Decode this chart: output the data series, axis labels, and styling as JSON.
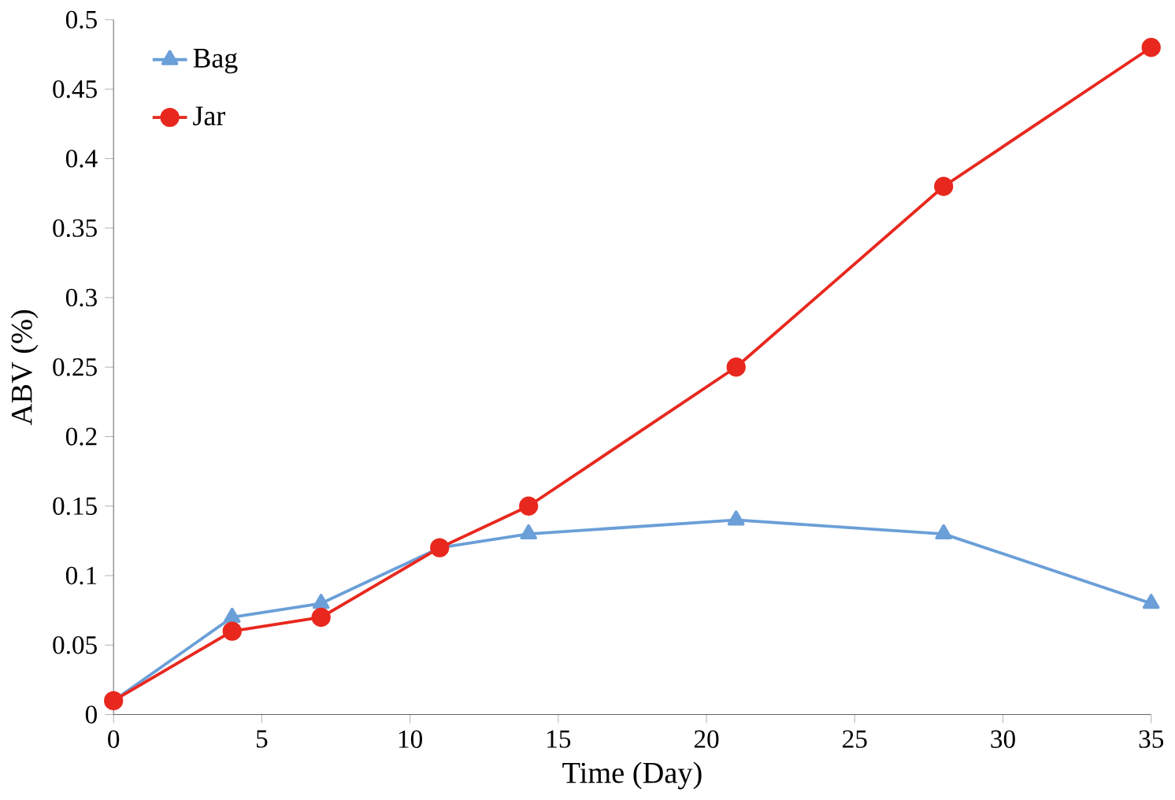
{
  "chart_data": {
    "type": "line",
    "xlabel": "Time (Day)",
    "ylabel": "ABV (%)",
    "x": [
      0,
      4,
      7,
      11,
      14,
      21,
      28,
      35
    ],
    "series": [
      {
        "name": "Bag",
        "color": "#6a9fd8",
        "marker": "triangle",
        "values": [
          0.01,
          0.07,
          0.08,
          0.12,
          0.13,
          0.14,
          0.13,
          0.08
        ]
      },
      {
        "name": "Jar",
        "color": "#e8281e",
        "marker": "circle",
        "values": [
          0.01,
          0.06,
          0.07,
          0.12,
          0.15,
          0.25,
          0.38,
          0.48
        ]
      }
    ],
    "xlim": [
      0,
      35
    ],
    "xticks": [
      0,
      5,
      10,
      15,
      20,
      25,
      30,
      35
    ],
    "ylim": [
      0,
      0.5
    ],
    "yticks": [
      0,
      0.05,
      0.1,
      0.15,
      0.2,
      0.25,
      0.3,
      0.35,
      0.4,
      0.45,
      0.5
    ],
    "grid": false,
    "legend": "top left",
    "line_style": "solid"
  }
}
